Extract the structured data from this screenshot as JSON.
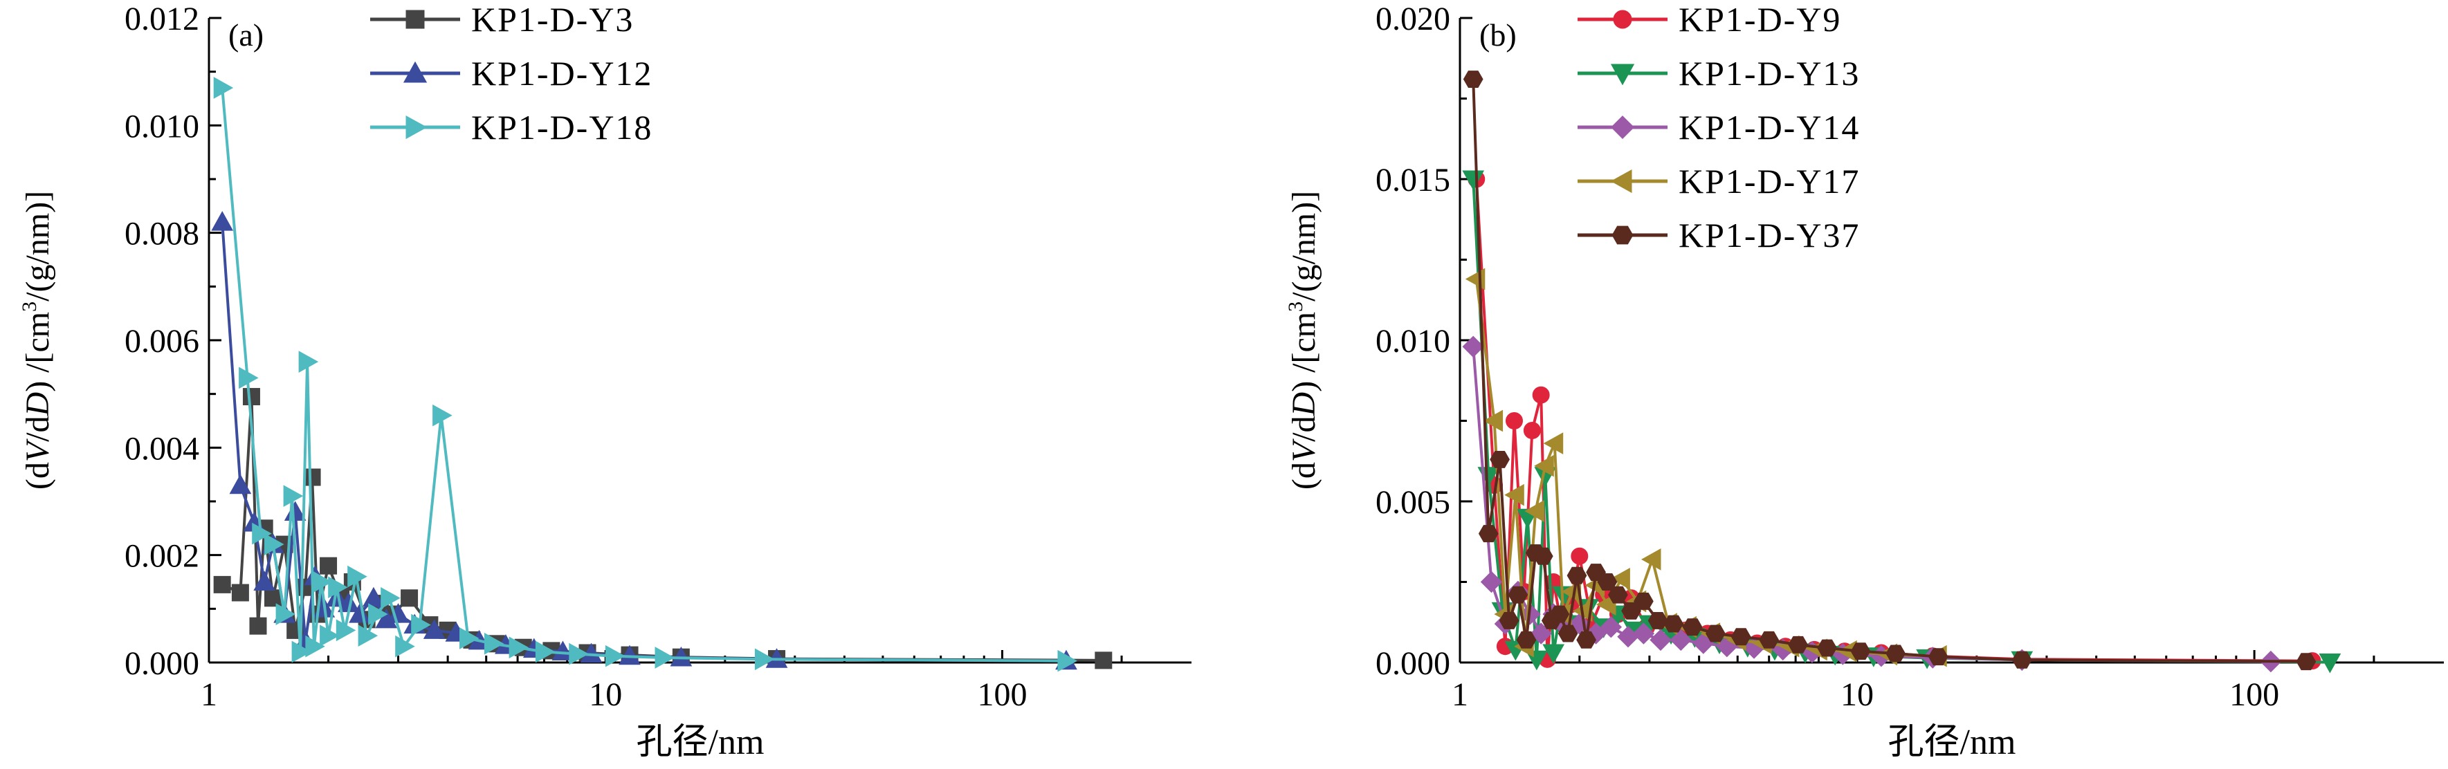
{
  "xlabel": "孔径/nm",
  "ylabel": "(dV/dD) /[cm³/(g/nm)]",
  "chart_data": [
    {
      "type": "line",
      "panel": "(a)",
      "xscale": "log",
      "xlim": [
        1,
        300
      ],
      "ylim": [
        0,
        0.012
      ],
      "xticks": [
        "1",
        "10",
        "100"
      ],
      "yticks": [
        "0.000",
        "0.002",
        "0.004",
        "0.006",
        "0.008",
        "0.010",
        "0.012"
      ],
      "legend_position": "top-center",
      "series": [
        {
          "name": "KP1-D-Y3",
          "color": "#444444",
          "marker": "square",
          "x": [
            1.08,
            1.2,
            1.28,
            1.33,
            1.38,
            1.45,
            1.55,
            1.65,
            1.75,
            1.82,
            1.88,
            2.0,
            2.15,
            2.3,
            2.5,
            2.7,
            2.9,
            3.2,
            3.6,
            4.0,
            4.6,
            5.3,
            6.2,
            7.3,
            9.0,
            11.5,
            15.5,
            27,
            180
          ],
          "y": [
            0.00145,
            0.0013,
            0.00495,
            0.00068,
            0.0025,
            0.0012,
            0.0022,
            0.0006,
            0.0014,
            0.00345,
            0.0009,
            0.0018,
            0.0012,
            0.0015,
            0.0008,
            0.0011,
            0.0009,
            0.0012,
            0.0007,
            0.0006,
            0.00042,
            0.00035,
            0.00028,
            0.00022,
            0.00018,
            0.00014,
            0.0001,
            7e-05,
            4e-05
          ]
        },
        {
          "name": "KP1-D-Y12",
          "color": "#3b4b9d",
          "marker": "triangle-up",
          "x": [
            1.08,
            1.2,
            1.3,
            1.38,
            1.45,
            1.55,
            1.65,
            1.75,
            1.85,
            1.95,
            2.1,
            2.25,
            2.4,
            2.6,
            2.8,
            3.0,
            3.3,
            3.7,
            4.2,
            4.8,
            5.6,
            6.6,
            7.8,
            9.2,
            11.5,
            15.5,
            27,
            145
          ],
          "y": [
            0.0082,
            0.0033,
            0.0026,
            0.0015,
            0.0022,
            0.0009,
            0.0028,
            0.0004,
            0.0016,
            0.001,
            0.0012,
            0.0011,
            0.0009,
            0.0012,
            0.0008,
            0.0009,
            0.0007,
            0.0006,
            0.00055,
            0.0004,
            0.00032,
            0.00025,
            0.0002,
            0.00016,
            0.00012,
            9e-05,
            6e-05,
            3e-05
          ]
        },
        {
          "name": "KP1-D-Y18",
          "color": "#4fbbc1",
          "marker": "triangle-right",
          "x": [
            1.08,
            1.25,
            1.35,
            1.45,
            1.55,
            1.62,
            1.7,
            1.77,
            1.84,
            1.92,
            2.0,
            2.1,
            2.2,
            2.35,
            2.5,
            2.65,
            2.85,
            3.1,
            3.4,
            3.85,
            4.5,
            5.2,
            6.0,
            7.0,
            8.5,
            10.5,
            14,
            25,
            145
          ],
          "y": [
            0.0107,
            0.0053,
            0.0024,
            0.0022,
            0.0009,
            0.0031,
            0.0002,
            0.0056,
            0.0003,
            0.0015,
            0.0005,
            0.0014,
            0.0006,
            0.0016,
            0.0005,
            0.0009,
            0.0012,
            0.0003,
            0.0007,
            0.0046,
            0.00045,
            0.00035,
            0.00028,
            0.0002,
            0.00016,
            0.00012,
            9e-05,
            6e-05,
            3e-05
          ]
        }
      ]
    },
    {
      "type": "line",
      "panel": "(b)",
      "xscale": "log",
      "xlim": [
        1,
        300
      ],
      "ylim": [
        0,
        0.02
      ],
      "xticks": [
        "1",
        "10",
        "100"
      ],
      "yticks": [
        "0.000",
        "0.005",
        "0.010",
        "0.015",
        "0.020"
      ],
      "legend_position": "top-center",
      "series": [
        {
          "name": "KP1-D-Y9",
          "color": "#e0243b",
          "marker": "circle",
          "x": [
            1.1,
            1.22,
            1.3,
            1.37,
            1.45,
            1.52,
            1.6,
            1.66,
            1.72,
            1.8,
            1.9,
            2.0,
            2.15,
            2.3,
            2.5,
            2.7,
            2.95,
            3.3,
            3.7,
            4.2,
            4.8,
            5.6,
            6.6,
            7.8,
            9.3,
            11.5,
            15.5,
            26,
            140
          ],
          "y": [
            0.015,
            0.0055,
            0.0005,
            0.0075,
            0.0022,
            0.0072,
            0.0083,
            0.0001,
            0.0025,
            0.0012,
            0.0018,
            0.0033,
            0.0012,
            0.0021,
            0.0015,
            0.002,
            0.0011,
            0.0012,
            0.001,
            0.0009,
            0.0007,
            0.0006,
            0.0005,
            0.0004,
            0.00035,
            0.0003,
            0.0002,
            0.0001,
            5e-05
          ]
        },
        {
          "name": "KP1-D-Y13",
          "color": "#1b9454",
          "marker": "triangle-down",
          "x": [
            1.08,
            1.18,
            1.28,
            1.38,
            1.48,
            1.56,
            1.64,
            1.72,
            1.82,
            1.95,
            2.1,
            2.3,
            2.5,
            2.75,
            3.0,
            3.4,
            3.9,
            4.5,
            5.3,
            6.2,
            7.4,
            8.8,
            11,
            15,
            26,
            155
          ],
          "y": [
            0.015,
            0.0058,
            0.0016,
            0.0004,
            0.0045,
            0.0001,
            0.0058,
            0.0003,
            0.0021,
            0.0012,
            0.0017,
            0.0011,
            0.0015,
            0.001,
            0.0012,
            0.0009,
            0.0008,
            0.0006,
            0.0005,
            0.0004,
            0.00032,
            0.00025,
            0.0002,
            0.00014,
            8e-05,
            1e-05
          ]
        },
        {
          "name": "KP1-D-Y14",
          "color": "#9b59a8",
          "marker": "diamond",
          "x": [
            1.08,
            1.2,
            1.3,
            1.4,
            1.5,
            1.6,
            1.72,
            1.85,
            2.0,
            2.2,
            2.4,
            2.65,
            2.9,
            3.2,
            3.6,
            4.1,
            4.7,
            5.5,
            6.5,
            7.7,
            9.2,
            11.5,
            15.5,
            26,
            110
          ],
          "y": [
            0.0098,
            0.0025,
            0.0012,
            0.0022,
            0.0015,
            0.0009,
            0.0015,
            0.0011,
            0.0012,
            0.0009,
            0.0011,
            0.0008,
            0.0009,
            0.0007,
            0.0007,
            0.0006,
            0.0005,
            0.00045,
            0.0004,
            0.00032,
            0.00026,
            0.0002,
            0.00015,
            8e-05,
            3e-05
          ]
        },
        {
          "name": "KP1-D-Y17",
          "color": "#a48a2c",
          "marker": "triangle-left",
          "x": [
            1.1,
            1.22,
            1.3,
            1.38,
            1.46,
            1.55,
            1.64,
            1.73,
            1.82,
            1.92,
            2.05,
            2.2,
            2.35,
            2.55,
            2.8,
            3.05,
            3.35,
            3.75,
            4.3,
            5.0,
            5.8,
            6.8,
            8.0,
            9.5,
            12,
            16
          ],
          "y": [
            0.0119,
            0.0075,
            0.0015,
            0.0052,
            0.0005,
            0.0047,
            0.0061,
            0.0068,
            0.0015,
            0.0022,
            0.0016,
            0.0024,
            0.0018,
            0.0026,
            0.0019,
            0.0032,
            0.0012,
            0.0011,
            0.0009,
            0.0007,
            0.0006,
            0.0005,
            0.0004,
            0.00035,
            0.00025,
            0.0002
          ]
        },
        {
          "name": "KP1-D-Y37",
          "color": "#5a2a1e",
          "marker": "hexagon",
          "x": [
            1.08,
            1.18,
            1.26,
            1.33,
            1.4,
            1.47,
            1.55,
            1.62,
            1.7,
            1.78,
            1.87,
            1.97,
            2.08,
            2.2,
            2.35,
            2.5,
            2.7,
            2.9,
            3.15,
            3.45,
            3.85,
            4.4,
            5.1,
            6.0,
            7.1,
            8.4,
            10.2,
            12.5,
            16,
            26,
            135
          ],
          "y": [
            0.0181,
            0.004,
            0.0063,
            0.0013,
            0.0021,
            0.0007,
            0.0034,
            0.0033,
            0.0013,
            0.0015,
            0.0009,
            0.0027,
            0.0007,
            0.0028,
            0.0025,
            0.0021,
            0.0016,
            0.0019,
            0.0013,
            0.0012,
            0.0011,
            0.0009,
            0.0008,
            0.0007,
            0.00055,
            0.00045,
            0.00035,
            0.00028,
            0.00018,
            8e-05,
            3e-05
          ]
        }
      ]
    }
  ]
}
